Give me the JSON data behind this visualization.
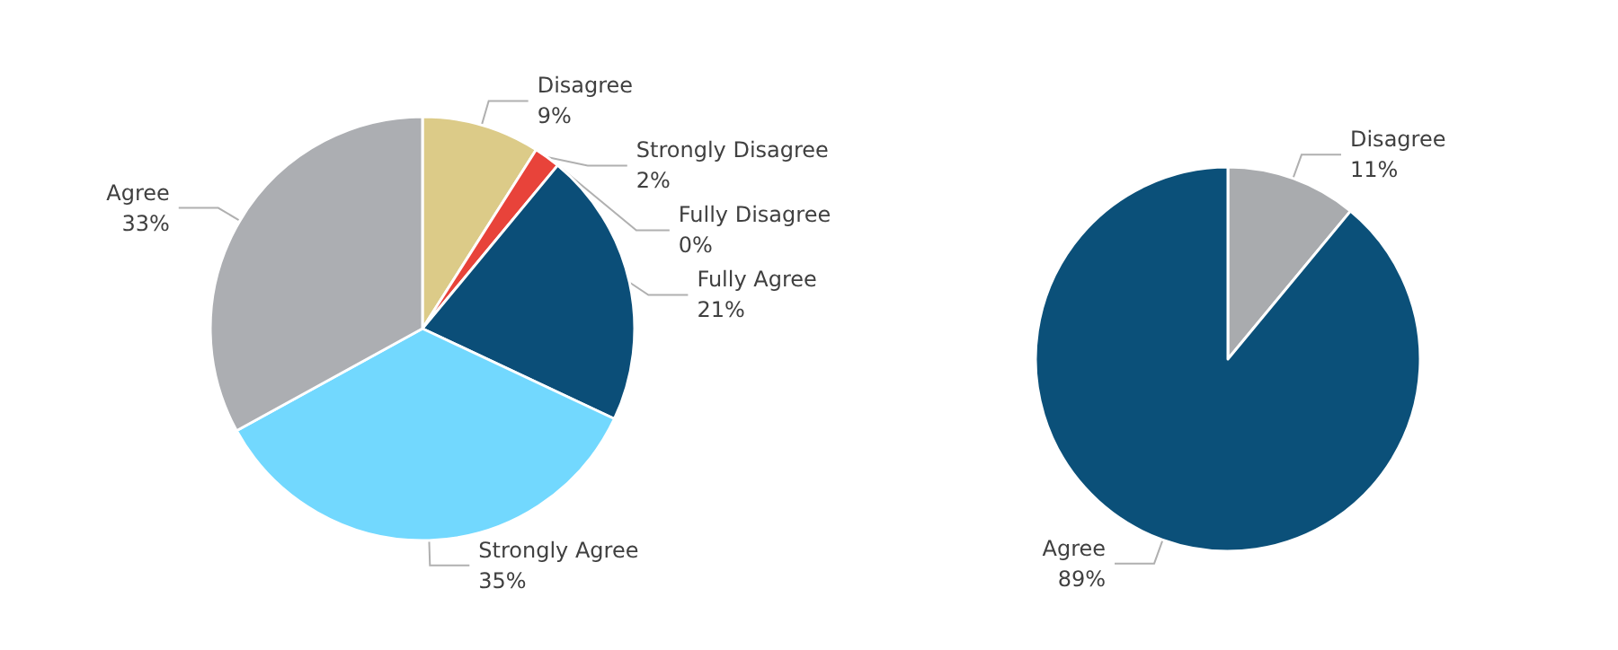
{
  "chart_data": [
    {
      "type": "pie",
      "categories": [
        "Disagree",
        "Strongly Disagree",
        "Fully Disagree",
        "Fully Agree",
        "Strongly Agree",
        "Agree"
      ],
      "values": [
        9,
        2,
        0,
        21,
        35,
        33
      ],
      "colors": [
        "#dccb88",
        "#e8433a",
        "#2f7bb0",
        "#0b4e78",
        "#72d8fe",
        "#acaeb2"
      ],
      "value_labels": [
        "9%",
        "2%",
        "0%",
        "21%",
        "35%",
        "33%"
      ]
    },
    {
      "type": "pie",
      "categories": [
        "Disagree",
        "Agree"
      ],
      "values": [
        11,
        89
      ],
      "colors": [
        "#a9abae",
        "#0b5079"
      ],
      "value_labels": [
        "11%",
        "89%"
      ]
    }
  ]
}
